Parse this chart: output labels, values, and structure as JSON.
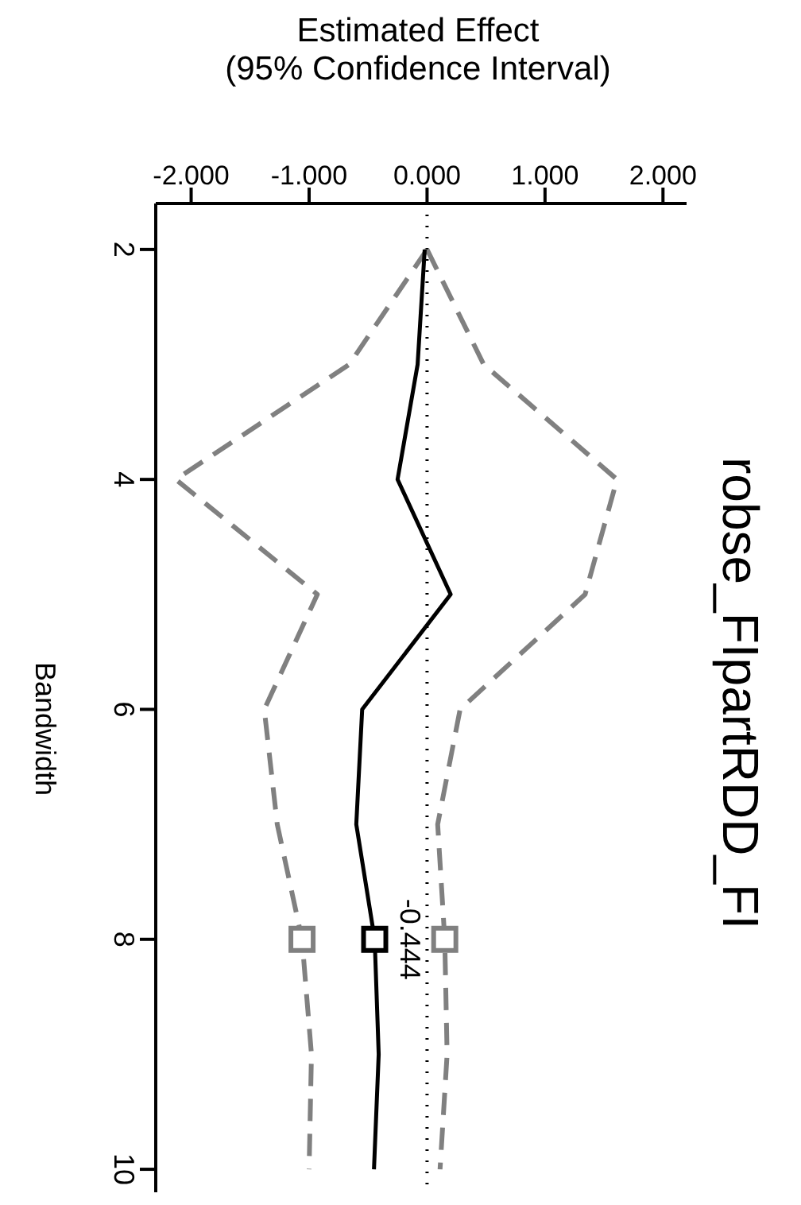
{
  "chart_data": {
    "type": "line",
    "title": "robse_FIpartRDD_FI",
    "xlabel": "Estimated Effect\n(95% Confidence Interval)",
    "ylabel": "Bandwidth",
    "orientation": "horizontal",
    "xlim": [
      -2.3,
      2.2
    ],
    "xticks": [
      {
        "value": -2,
        "label": "-2.000"
      },
      {
        "value": -1,
        "label": "-1.000"
      },
      {
        "value": 0,
        "label": "0.000"
      },
      {
        "value": 1,
        "label": "1.000"
      },
      {
        "value": 2,
        "label": "2.000"
      }
    ],
    "ylim": [
      10.2,
      1.6
    ],
    "yticks": [
      2,
      4,
      6,
      8,
      10
    ],
    "x": [
      2,
      3,
      4,
      5,
      6,
      7,
      8,
      9,
      10
    ],
    "series": [
      {
        "color": "#808080",
        "line_style": "dashed",
        "marker": "none",
        "values": [
          0,
          -0.66,
          -2.13,
          -0.93,
          -1.38,
          -1.27,
          -1.06,
          -0.98,
          -1.0
        ]
      },
      {
        "color": "#808080",
        "line_style": "dashed",
        "marker": "none",
        "values": [
          0,
          0.48,
          1.61,
          1.34,
          0.28,
          0.09,
          0.15,
          0.17,
          0.11
        ]
      },
      {
        "color": "#000000",
        "line_style": "solid",
        "marker": "none",
        "values": [
          -0.02,
          -0.08,
          -0.25,
          0.2,
          -0.55,
          -0.6,
          -0.444,
          -0.41,
          -0.45
        ]
      },
      {
        "type": "scatter",
        "color": "#808080",
        "marker": "square",
        "values": [
          null,
          null,
          null,
          null,
          null,
          null,
          -1.06,
          null,
          null
        ]
      },
      {
        "type": "scatter",
        "color": "#000000",
        "marker": "square",
        "values": [
          null,
          null,
          null,
          null,
          null,
          null,
          -0.444,
          null,
          null
        ],
        "value_labels": [
          null,
          null,
          null,
          null,
          null,
          null,
          "-0.444",
          null,
          null
        ]
      },
      {
        "type": "scatter",
        "color": "#808080",
        "marker": "square",
        "values": [
          null,
          null,
          null,
          null,
          null,
          null,
          0.15,
          null,
          null
        ]
      }
    ],
    "ref_lines": [
      {
        "axis": "x",
        "value": 0,
        "line_style": "dotted",
        "color": "#000000"
      }
    ],
    "grid": false
  }
}
